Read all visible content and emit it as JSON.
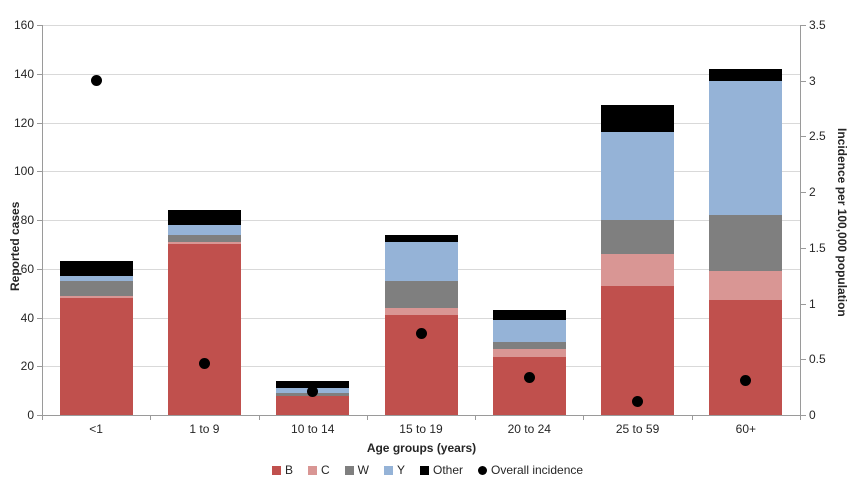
{
  "chart_data": {
    "type": "bar",
    "subtype": "stacked-bars-with-secondary-axis-points",
    "categories": [
      "<1",
      "1 to 9",
      "10 to 14",
      "15 to 19",
      "20 to 24",
      "25 to 59",
      "60+"
    ],
    "series": [
      {
        "name": "B",
        "color": "#C0504D",
        "values": [
          48,
          70,
          8,
          41,
          24,
          53,
          47
        ]
      },
      {
        "name": "C",
        "color": "#D99694",
        "values": [
          1,
          1,
          0,
          3,
          3,
          13,
          12
        ]
      },
      {
        "name": "W",
        "color": "#7F7F7F",
        "values": [
          6,
          3,
          1,
          11,
          3,
          14,
          23
        ]
      },
      {
        "name": "Y",
        "color": "#95B3D7",
        "values": [
          2,
          4,
          2,
          16,
          9,
          36,
          55
        ]
      },
      {
        "name": "Other",
        "color": "#000000",
        "values": [
          6,
          6,
          3,
          3,
          4,
          11,
          5
        ]
      }
    ],
    "bar_totals": [
      63,
      84,
      14,
      74,
      43,
      127,
      142
    ],
    "points_series": {
      "name": "Overall incidence",
      "color": "#000000",
      "values": [
        3.0,
        0.46,
        0.21,
        0.73,
        0.34,
        0.12,
        0.31
      ]
    },
    "y_left": {
      "label": "Reported cases",
      "min": 0,
      "max": 160,
      "step": 20,
      "ticks": [
        "0",
        "20",
        "40",
        "60",
        "80",
        "100",
        "120",
        "140",
        "160"
      ]
    },
    "y_right": {
      "label": "Incidence per 100,000 population",
      "min": 0,
      "max": 3.5,
      "step": 0.5,
      "ticks": [
        "0",
        "0.5",
        "1",
        "1.5",
        "2",
        "2.5",
        "3",
        "3.5"
      ]
    },
    "x_label": "Age groups (years)",
    "grid": "horizontal",
    "legend_position": "bottom",
    "legend": {
      "items": [
        {
          "label": "B",
          "color": "#C0504D",
          "marker": "square"
        },
        {
          "label": "C",
          "color": "#D99694",
          "marker": "square"
        },
        {
          "label": "W",
          "color": "#7F7F7F",
          "marker": "square"
        },
        {
          "label": "Y",
          "color": "#95B3D7",
          "marker": "square"
        },
        {
          "label": "Other",
          "color": "#000000",
          "marker": "square"
        },
        {
          "label": "Overall incidence",
          "color": "#000000",
          "marker": "circle"
        }
      ]
    },
    "colors": {
      "gridline": "#d9d9d9",
      "axis_line": "#9a9a9a",
      "text": "#262626",
      "background": "#ffffff"
    }
  }
}
